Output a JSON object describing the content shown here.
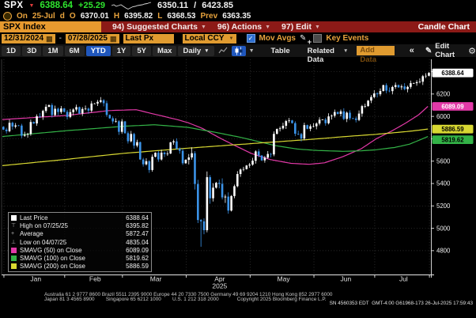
{
  "icons": {
    "tick_down": "▼",
    "calendar": "▦",
    "pencil": "✎",
    "gear": "⚙",
    "collapse": "«",
    "dropdown": "▼",
    "check": "✓"
  },
  "ticker": {
    "symbol": "SPX",
    "last": "6388.64",
    "change": "+25.29",
    "range_low": "6350.11",
    "separator": "/",
    "range_high": "6423.85"
  },
  "ohlc": {
    "session_label": "On",
    "date": "25-Jul",
    "flag": "d",
    "open_label": "O",
    "open": "6370.01",
    "high_label": "H",
    "high": "6395.82",
    "low_label": "L",
    "low": "6368.53",
    "prev_label": "Prev",
    "prev": "6363.35"
  },
  "menu": {
    "security_tab": "SPX Index",
    "items": [
      "94) Suggested Charts",
      "96) Actions",
      "97) Edit"
    ],
    "chart_type": "Candle Chart"
  },
  "controls": {
    "date_from": "12/31/2024",
    "date_to": "07/28/2025",
    "price_source": "Last Px",
    "currency": "Local CCY",
    "mov_avgs_label": "Mov Avgs",
    "key_events_label": "Key Events"
  },
  "toolbar": {
    "ranges": [
      "1D",
      "3D",
      "1M",
      "6M",
      "YTD",
      "1Y",
      "5Y",
      "Max"
    ],
    "selected_range": "YTD",
    "frequency": "Daily",
    "table_label": "Table",
    "related_data_label": "+ Related Data",
    "add_data_placeholder": "Add Data",
    "edit_chart_label": "Edit Chart"
  },
  "legend": {
    "rows": [
      {
        "marker": "swatch",
        "color": "#ffffff",
        "label": "Last Price",
        "value": "6388.64"
      },
      {
        "marker": "glyph",
        "glyph": "⊤",
        "label": "High on 07/25/25",
        "value": "6395.82"
      },
      {
        "marker": "glyph",
        "glyph": "+",
        "label": "Average",
        "value": "5872.47"
      },
      {
        "marker": "glyph",
        "glyph": "⊥",
        "label": "Low on 04/07/25",
        "value": "4835.04"
      },
      {
        "marker": "swatch",
        "color": "#e339a8",
        "label": "SMAVG (50) on Close",
        "value": "6089.09"
      },
      {
        "marker": "swatch",
        "color": "#33b347",
        "label": "SMAVG (100) on Close",
        "value": "5819.62"
      },
      {
        "marker": "swatch",
        "color": "#d8d832",
        "label": "SMAVG (200) on Close",
        "value": "5886.59"
      }
    ]
  },
  "chart_data": {
    "type": "candlestick",
    "security": "SPX Index",
    "frequency": "Daily",
    "year_label": "2025",
    "x_months": [
      "Jan",
      "Feb",
      "Mar",
      "Apr",
      "May",
      "Jun",
      "Jul"
    ],
    "month_start_idx": [
      1,
      21,
      40,
      61,
      82,
      103,
      123,
      141
    ],
    "y_ticks": [
      6400,
      6200,
      6000,
      5800,
      5600,
      5400,
      5200,
      5000,
      4800
    ],
    "y_range": [
      4587,
      6510
    ],
    "open_seed": 5907,
    "closes": [
      5882,
      5868,
      5943,
      5909,
      5919,
      5918,
      5827,
      5836,
      5843,
      5950,
      5937,
      6001,
      5997,
      6049,
      6086,
      6101,
      6012,
      6068,
      6039,
      6071,
      6041,
      5995,
      6038,
      6061,
      6083,
      6026,
      6066,
      6069,
      6052,
      6115,
      6115,
      6130,
      6144,
      6118,
      6013,
      5983,
      5955,
      5956,
      5862,
      5955,
      5850,
      5778,
      5843,
      5739,
      5770,
      5615,
      5572,
      5599,
      5521,
      5639,
      5675,
      5615,
      5676,
      5663,
      5668,
      5768,
      5777,
      5712,
      5693,
      5581,
      5612,
      5633,
      5671,
      5396,
      5074,
      5062,
      4983,
      5457,
      5268,
      5363,
      5406,
      5397,
      5276,
      5283,
      5158,
      5288,
      5376,
      5485,
      5525,
      5529,
      5561,
      5569,
      5604,
      5687,
      5650,
      5607,
      5631,
      5664,
      5660,
      5844,
      5887,
      5893,
      5916,
      5958,
      5964,
      5940,
      5845,
      5842,
      5803,
      5922,
      5889,
      5912,
      5912,
      5936,
      5970,
      5971,
      5939,
      6000,
      6006,
      6039,
      6022,
      6045,
      5977,
      6033,
      5983,
      5981,
      5968,
      6025,
      6092,
      6092,
      6141,
      6173,
      6205,
      6198,
      6227,
      6279,
      6230,
      6226,
      6263,
      6280,
      6260,
      6268,
      6244,
      6264,
      6297,
      6297,
      6306,
      6310,
      6359,
      6363,
      6389
    ],
    "special_low": {
      "index": 65,
      "price": 4835.04
    },
    "special_high": {
      "index": 140,
      "price": 6395.82
    },
    "candle_up_color": "#ffffff",
    "candle_down_color": "#3b93e8",
    "smas": [
      {
        "name": "SMAVG 50",
        "color": "#e339a8",
        "anchors": [
          [
            0,
            5972
          ],
          [
            21,
            6008
          ],
          [
            35,
            6052
          ],
          [
            44,
            6060
          ],
          [
            50,
            6020
          ],
          [
            57,
            5975
          ],
          [
            61,
            5945
          ],
          [
            66,
            5890
          ],
          [
            72,
            5800
          ],
          [
            78,
            5720
          ],
          [
            82,
            5668
          ],
          [
            88,
            5615
          ],
          [
            95,
            5580
          ],
          [
            101,
            5572
          ],
          [
            106,
            5585
          ],
          [
            112,
            5640
          ],
          [
            118,
            5710
          ],
          [
            123,
            5800
          ],
          [
            128,
            5868
          ],
          [
            133,
            5945
          ],
          [
            137,
            6015
          ],
          [
            140,
            6089
          ]
        ]
      },
      {
        "name": "SMAVG 100",
        "color": "#33b347",
        "anchors": [
          [
            0,
            5820
          ],
          [
            21,
            5872
          ],
          [
            40,
            5912
          ],
          [
            50,
            5925
          ],
          [
            61,
            5902
          ],
          [
            70,
            5858
          ],
          [
            78,
            5815
          ],
          [
            82,
            5790
          ],
          [
            90,
            5738
          ],
          [
            97,
            5708
          ],
          [
            104,
            5695
          ],
          [
            112,
            5688
          ],
          [
            118,
            5692
          ],
          [
            123,
            5702
          ],
          [
            129,
            5722
          ],
          [
            134,
            5752
          ],
          [
            140,
            5820
          ]
        ]
      },
      {
        "name": "SMAVG 200",
        "color": "#d8d832",
        "anchors": [
          [
            0,
            5560
          ],
          [
            21,
            5616
          ],
          [
            40,
            5670
          ],
          [
            61,
            5716
          ],
          [
            82,
            5757
          ],
          [
            95,
            5782
          ],
          [
            103,
            5798
          ],
          [
            113,
            5820
          ],
          [
            123,
            5840
          ],
          [
            130,
            5857
          ],
          [
            135,
            5870
          ],
          [
            140,
            5887
          ]
        ]
      }
    ],
    "axis_badges": [
      {
        "value": "6388.64",
        "price": 6388.64,
        "bg": "#ffffff",
        "fg": "#000000",
        "dy": 0
      },
      {
        "value": "6089.09",
        "price": 6089.09,
        "bg": "#e339a8",
        "fg": "#ffffff",
        "dy": 0
      },
      {
        "value": "5886.59",
        "price": 5886.59,
        "bg": "#d8d832",
        "fg": "#000000",
        "dy": 0
      },
      {
        "value": "5819.62",
        "price": 5819.62,
        "bg": "#33b347",
        "fg": "#000000",
        "dy": 4
      }
    ]
  },
  "footer": {
    "line1": "Australia 61 2 9777 8600 Brazil 5511 2395 9000 Europe 44 20 7330 7500 Germany 49 69 9204 1210 Hong Kong 852 2977 6000",
    "line2": "Japan 81 3 4565 8900        Singapore 65 6212 1000        U.S. 1 212 318 2000             Copyright 2025 Bloomberg Finance L.P.",
    "line3": "SN 4560353 EDT  GMT-4:00 G61968-173 26-Jul-2025 17:59:43"
  }
}
